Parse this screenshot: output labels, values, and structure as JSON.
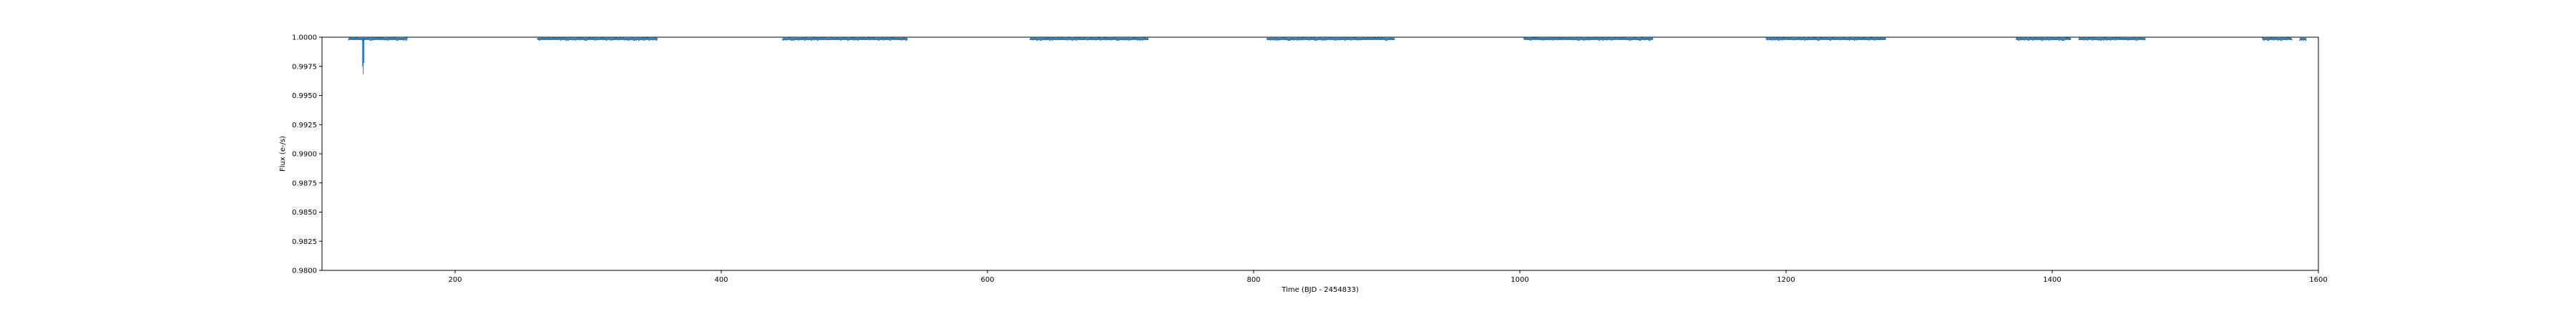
{
  "chart_data": {
    "type": "scatter",
    "xlabel": "Time (BJD - 2454833)",
    "ylabel": "Flux (e-/s)",
    "xlim": [
      100,
      1600
    ],
    "ylim": [
      0.98,
      1.0
    ],
    "x_ticks": [
      200,
      400,
      600,
      800,
      1000,
      1200,
      1400,
      1600
    ],
    "x_tick_labels": [
      "200",
      "400",
      "600",
      "800",
      "1000",
      "1200",
      "1400",
      "1600"
    ],
    "y_ticks": [
      0.98,
      0.9825,
      0.985,
      0.9875,
      0.99,
      0.9925,
      0.995,
      0.9975,
      1.0
    ],
    "y_tick_labels": [
      "0.9800",
      "0.9825",
      "0.9850",
      "0.9875",
      "0.9900",
      "0.9925",
      "0.9950",
      "0.9975",
      "1.0000"
    ],
    "grid": false,
    "marker_color": "#1f77b4",
    "segments": [
      {
        "x_start": 120,
        "x_end": 131,
        "y": 0.99985
      },
      {
        "x_start": 131,
        "x_end": 164,
        "y": 0.99985
      },
      {
        "x_start": 262,
        "x_end": 352,
        "y": 0.99985
      },
      {
        "x_start": 446,
        "x_end": 540,
        "y": 0.99985
      },
      {
        "x_start": 632,
        "x_end": 721,
        "y": 0.99985
      },
      {
        "x_start": 810,
        "x_end": 906,
        "y": 0.99985
      },
      {
        "x_start": 1003,
        "x_end": 1100,
        "y": 0.99985
      },
      {
        "x_start": 1185,
        "x_end": 1275,
        "y": 0.99985
      },
      {
        "x_start": 1373,
        "x_end": 1414,
        "y": 0.99985
      },
      {
        "x_start": 1420,
        "x_end": 1470,
        "y": 0.99985
      },
      {
        "x_start": 1558,
        "x_end": 1580,
        "y": 0.99985
      },
      {
        "x_start": 1586,
        "x_end": 1591,
        "y": 0.99985
      }
    ],
    "dips": [
      {
        "x": 130.5,
        "y_min": 0.9975,
        "y_max": 1.0
      },
      {
        "x": 131.0,
        "y_min": 0.9968,
        "y_max": 1.0
      },
      {
        "x": 131.5,
        "y_min": 0.9978,
        "y_max": 1.0
      },
      {
        "x": 1392,
        "y_min": 0.99965,
        "y_max": 1.0
      },
      {
        "x": 1097,
        "y_min": 0.9997,
        "y_max": 1.0
      }
    ]
  }
}
